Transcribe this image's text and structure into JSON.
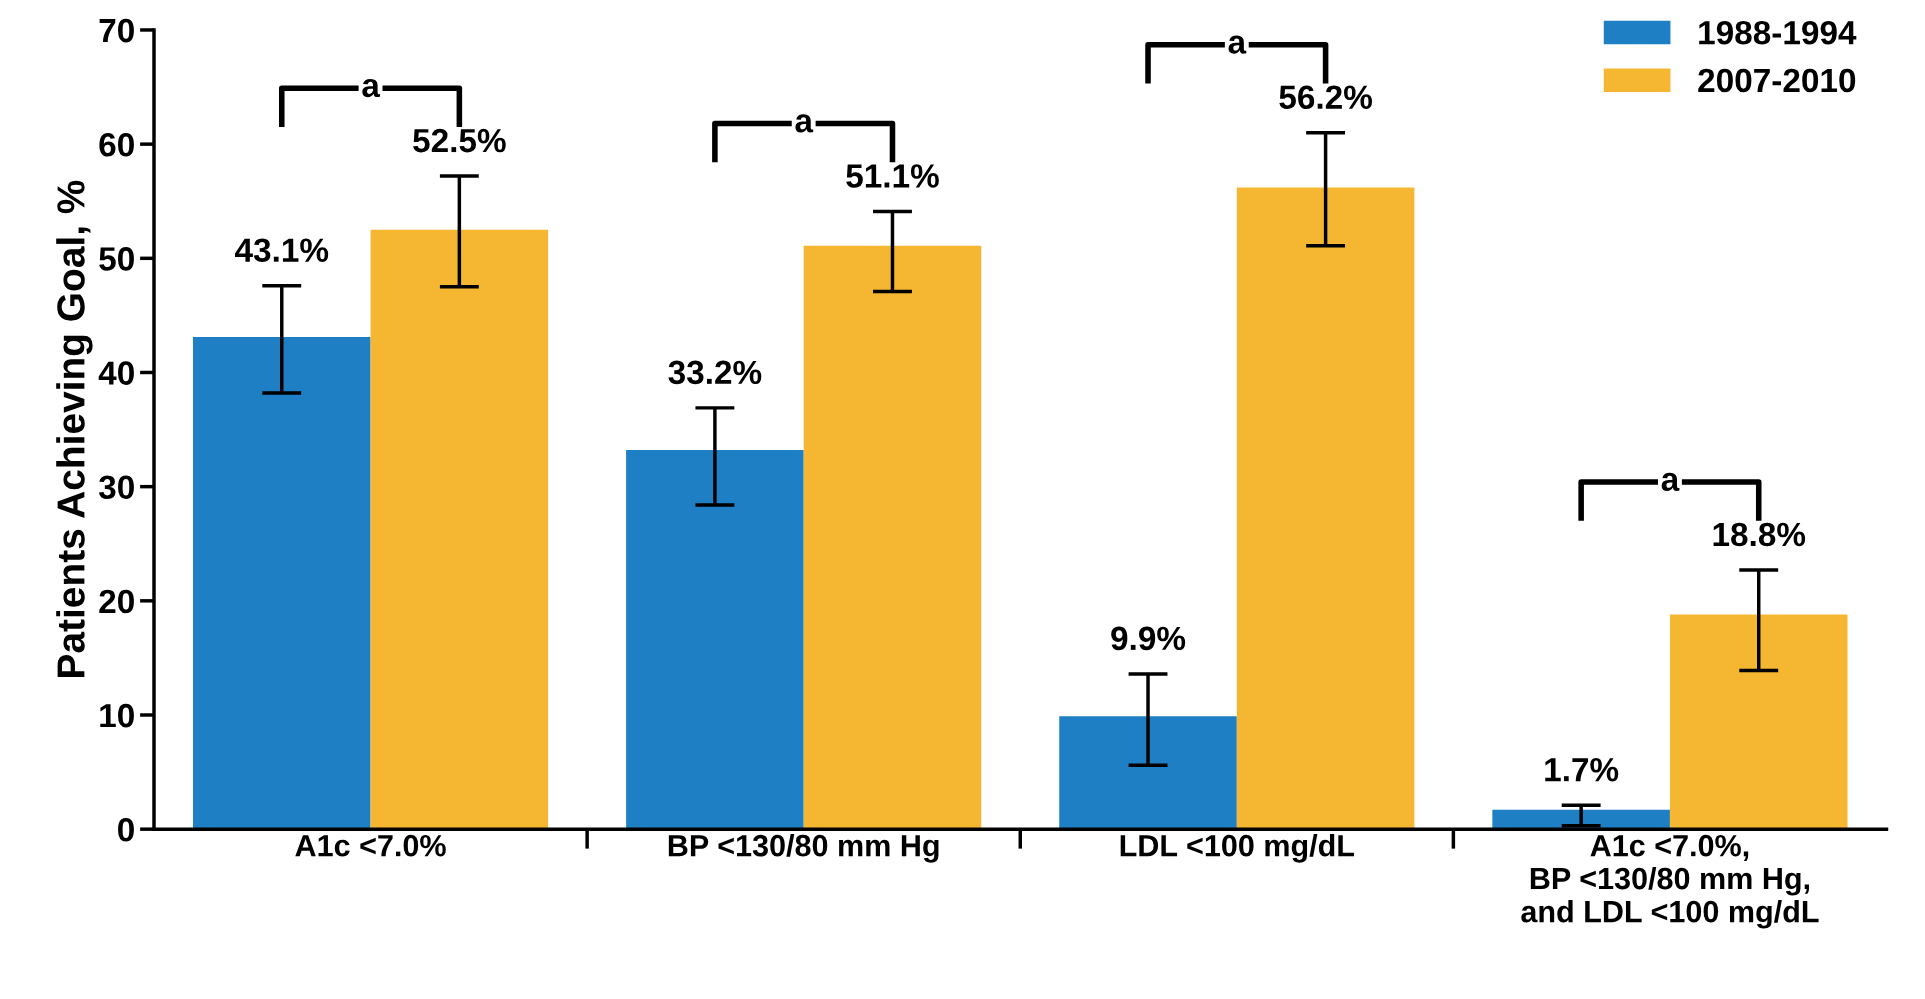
{
  "chart_data": {
    "type": "bar",
    "ylabel": "Patients Achieving Goal, %",
    "categories": [
      "A1c <7.0%",
      "BP <130/80 mm Hg",
      "LDL <100 mg/dL",
      "A1c <7.0%,\nBP <130/80 mm Hg,\nand LDL <100 mg/dL"
    ],
    "series": [
      {
        "name": "1988-1994",
        "color": "#1f7fc4",
        "values": [
          43.1,
          33.2,
          9.9,
          1.7
        ],
        "value_labels": [
          "43.1%",
          "33.2%",
          "9.9%",
          "1.7%"
        ],
        "errors": [
          [
            38.2,
            47.6
          ],
          [
            28.4,
            36.9
          ],
          [
            5.6,
            13.6
          ],
          [
            0.3,
            2.1
          ]
        ]
      },
      {
        "name": "2007-2010",
        "color": "#f5b731",
        "values": [
          52.5,
          51.1,
          56.2,
          18.8
        ],
        "value_labels": [
          "52.5%",
          "51.1%",
          "56.2%",
          "18.8%"
        ],
        "errors": [
          [
            47.5,
            57.2
          ],
          [
            47.1,
            54.1
          ],
          [
            51.1,
            61.0
          ],
          [
            13.9,
            22.7
          ]
        ]
      }
    ],
    "annotations": [
      "a",
      "a",
      "a",
      "a"
    ],
    "ylim": [
      0,
      70
    ],
    "yticks": [
      0,
      10,
      20,
      30,
      40,
      50,
      60,
      70
    ],
    "grid": false,
    "legend": "top right"
  }
}
